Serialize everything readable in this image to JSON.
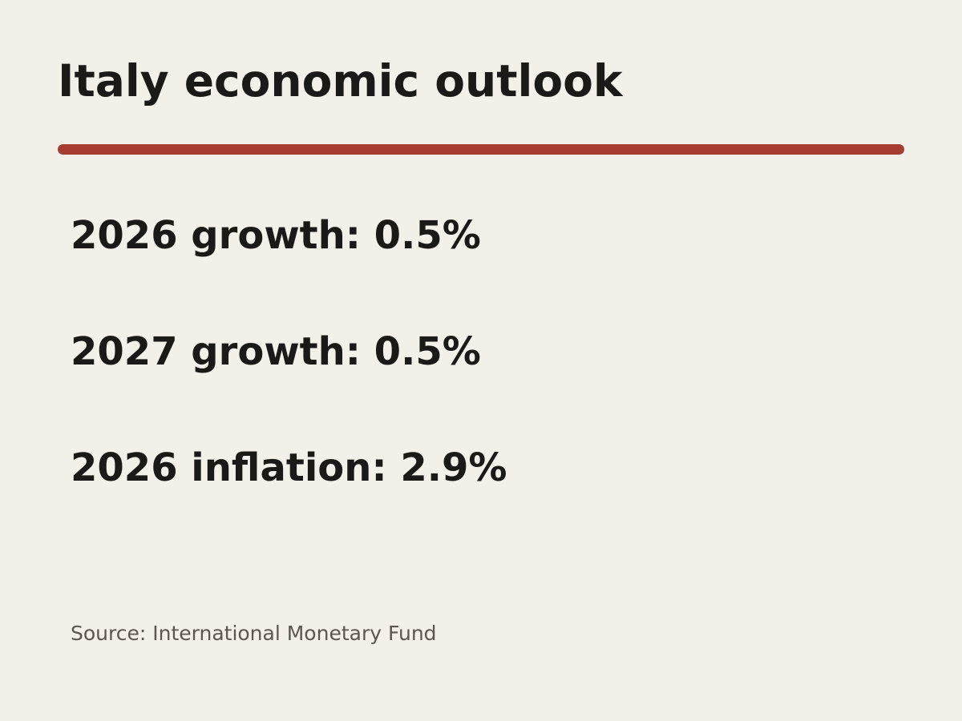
{
  "header": {
    "title": "Italy economic outlook"
  },
  "stats": [
    "2026 growth: 0.5%",
    "2027 growth: 0.5%",
    "2026 inflation: 2.9%"
  ],
  "source": "Source: International Monetary Fund"
}
